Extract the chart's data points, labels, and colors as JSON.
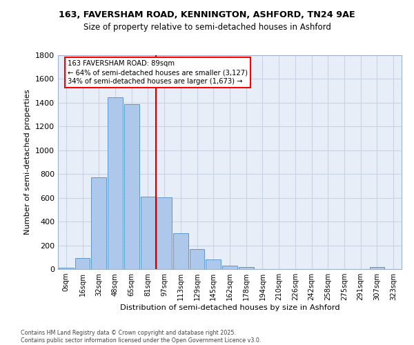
{
  "title_line1": "163, FAVERSHAM ROAD, KENNINGTON, ASHFORD, TN24 9AE",
  "title_line2": "Size of property relative to semi-detached houses in Ashford",
  "xlabel": "Distribution of semi-detached houses by size in Ashford",
  "ylabel": "Number of semi-detached properties",
  "categories": [
    "0sqm",
    "16sqm",
    "32sqm",
    "48sqm",
    "65sqm",
    "81sqm",
    "97sqm",
    "113sqm",
    "129sqm",
    "145sqm",
    "162sqm",
    "178sqm",
    "194sqm",
    "210sqm",
    "226sqm",
    "242sqm",
    "258sqm",
    "275sqm",
    "291sqm",
    "307sqm",
    "323sqm"
  ],
  "bar_values": [
    10,
    95,
    775,
    1445,
    1385,
    610,
    605,
    300,
    170,
    80,
    28,
    20,
    0,
    0,
    0,
    0,
    0,
    0,
    0,
    17,
    0
  ],
  "bar_color": "#adc8ea",
  "bar_edge_color": "#5b96cc",
  "grid_color": "#c8d4e4",
  "bg_color": "#e8eef8",
  "vline_color": "#cc0000",
  "vline_x": 5.5,
  "annotation_title": "163 FAVERSHAM ROAD: 89sqm",
  "annotation_line1": "← 64% of semi-detached houses are smaller (3,127)",
  "annotation_line2": "34% of semi-detached houses are larger (1,673) →",
  "ylim": [
    0,
    1800
  ],
  "yticks": [
    0,
    200,
    400,
    600,
    800,
    1000,
    1200,
    1400,
    1600,
    1800
  ],
  "footnote": "Contains HM Land Registry data © Crown copyright and database right 2025.\nContains public sector information licensed under the Open Government Licence v3.0."
}
